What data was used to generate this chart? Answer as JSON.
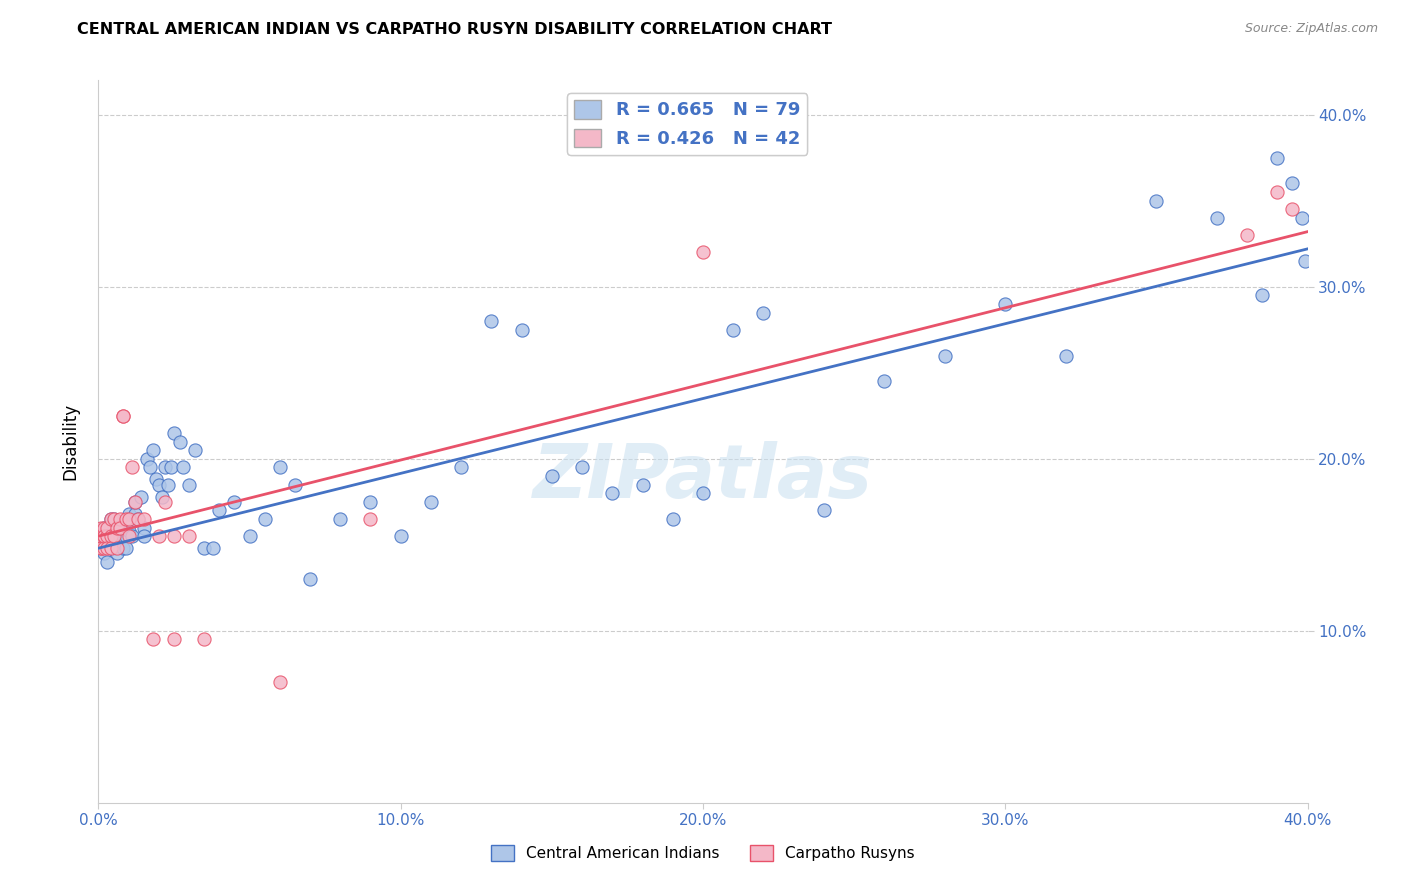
{
  "title": "CENTRAL AMERICAN INDIAN VS CARPATHO RUSYN DISABILITY CORRELATION CHART",
  "source": "Source: ZipAtlas.com",
  "ylabel": "Disability",
  "xlim": [
    0.0,
    0.4
  ],
  "ylim": [
    0.0,
    0.42
  ],
  "xticks": [
    0.0,
    0.1,
    0.2,
    0.3,
    0.4
  ],
  "yticks": [
    0.1,
    0.2,
    0.3,
    0.4
  ],
  "ytick_labels_right": [
    "10.0%",
    "20.0%",
    "30.0%",
    "40.0%"
  ],
  "xtick_labels": [
    "0.0%",
    "10.0%",
    "20.0%",
    "30.0%",
    "40.0%"
  ],
  "blue_R": 0.665,
  "blue_N": 79,
  "pink_R": 0.426,
  "pink_N": 42,
  "blue_color": "#aec6e8",
  "pink_color": "#f4b8c8",
  "blue_line_color": "#4472c4",
  "pink_line_color": "#e8526a",
  "legend_label_blue": "Central American Indians",
  "legend_label_pink": "Carpatho Rusyns",
  "watermark": "ZIPatlas",
  "blue_line_x0": 0.0,
  "blue_line_y0": 0.148,
  "blue_line_x1": 0.4,
  "blue_line_y1": 0.322,
  "pink_line_x0": 0.0,
  "pink_line_y0": 0.155,
  "pink_line_x1": 0.4,
  "pink_line_y1": 0.332,
  "blue_x": [
    0.001,
    0.001,
    0.002,
    0.002,
    0.003,
    0.003,
    0.003,
    0.004,
    0.004,
    0.005,
    0.005,
    0.005,
    0.006,
    0.006,
    0.007,
    0.007,
    0.008,
    0.008,
    0.009,
    0.009,
    0.01,
    0.01,
    0.011,
    0.012,
    0.012,
    0.013,
    0.014,
    0.015,
    0.015,
    0.016,
    0.017,
    0.018,
    0.019,
    0.02,
    0.021,
    0.022,
    0.023,
    0.024,
    0.025,
    0.027,
    0.028,
    0.03,
    0.032,
    0.035,
    0.038,
    0.04,
    0.045,
    0.05,
    0.055,
    0.06,
    0.065,
    0.07,
    0.08,
    0.09,
    0.1,
    0.11,
    0.12,
    0.13,
    0.14,
    0.15,
    0.16,
    0.17,
    0.18,
    0.19,
    0.2,
    0.21,
    0.22,
    0.24,
    0.26,
    0.28,
    0.3,
    0.32,
    0.35,
    0.37,
    0.385,
    0.39,
    0.395,
    0.398,
    0.399
  ],
  "blue_y": [
    0.148,
    0.155,
    0.145,
    0.16,
    0.15,
    0.155,
    0.14,
    0.16,
    0.165,
    0.148,
    0.155,
    0.165,
    0.15,
    0.145,
    0.155,
    0.16,
    0.148,
    0.155,
    0.155,
    0.148,
    0.158,
    0.168,
    0.155,
    0.168,
    0.175,
    0.165,
    0.178,
    0.16,
    0.155,
    0.2,
    0.195,
    0.205,
    0.188,
    0.185,
    0.178,
    0.195,
    0.185,
    0.195,
    0.215,
    0.21,
    0.195,
    0.185,
    0.205,
    0.148,
    0.148,
    0.17,
    0.175,
    0.155,
    0.165,
    0.195,
    0.185,
    0.13,
    0.165,
    0.175,
    0.155,
    0.175,
    0.195,
    0.28,
    0.275,
    0.19,
    0.195,
    0.18,
    0.185,
    0.165,
    0.18,
    0.275,
    0.285,
    0.17,
    0.245,
    0.26,
    0.29,
    0.26,
    0.35,
    0.34,
    0.295,
    0.375,
    0.36,
    0.34,
    0.315
  ],
  "pink_x": [
    0.001,
    0.001,
    0.001,
    0.001,
    0.002,
    0.002,
    0.002,
    0.002,
    0.003,
    0.003,
    0.003,
    0.004,
    0.004,
    0.004,
    0.005,
    0.005,
    0.006,
    0.006,
    0.007,
    0.007,
    0.008,
    0.008,
    0.009,
    0.01,
    0.01,
    0.011,
    0.012,
    0.013,
    0.015,
    0.018,
    0.02,
    0.022,
    0.025,
    0.025,
    0.03,
    0.035,
    0.06,
    0.09,
    0.2,
    0.38,
    0.39,
    0.395
  ],
  "pink_y": [
    0.148,
    0.155,
    0.16,
    0.148,
    0.155,
    0.16,
    0.148,
    0.155,
    0.155,
    0.16,
    0.148,
    0.155,
    0.165,
    0.148,
    0.165,
    0.155,
    0.16,
    0.148,
    0.165,
    0.16,
    0.225,
    0.225,
    0.165,
    0.165,
    0.155,
    0.195,
    0.175,
    0.165,
    0.165,
    0.095,
    0.155,
    0.175,
    0.155,
    0.095,
    0.155,
    0.095,
    0.07,
    0.165,
    0.32,
    0.33,
    0.355,
    0.345
  ]
}
